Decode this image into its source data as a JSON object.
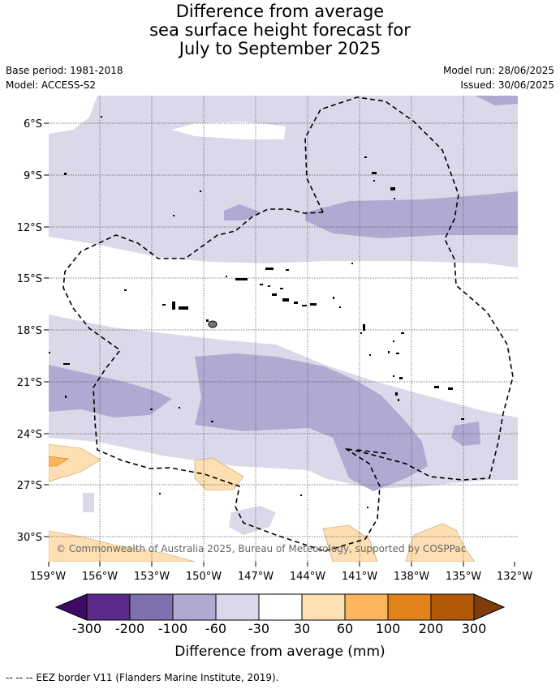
{
  "title": {
    "line1": "Difference from average",
    "line2": "sea surface height forecast for",
    "line3": "July to September 2025"
  },
  "meta": {
    "base_period": "Base period: 1981-2018",
    "model": "Model: ACCESS-S2",
    "model_run": "Model run: 28/06/2025",
    "issued": "Issued: 30/06/2025"
  },
  "map": {
    "copyright": "© Commonwealth of Australia 2025, Bureau of Meteorology, supported by COSPPac",
    "lat_labels": [
      "6°S",
      "9°S",
      "12°S",
      "15°S",
      "18°S",
      "21°S",
      "24°S",
      "27°S",
      "30°S"
    ],
    "lon_labels": [
      "159°W",
      "156°W",
      "153°W",
      "150°W",
      "147°W",
      "144°W",
      "141°W",
      "138°W",
      "135°W",
      "132°W"
    ],
    "colors": {
      "ocean_neutral": "#ffffff",
      "neg_30_60": "#d9d9ea",
      "neg_60_100": "#b1a9d2",
      "pos_30_60": "#fddfb3",
      "pos_60_100": "#fbb55e",
      "land": "#000000"
    }
  },
  "colorbar": {
    "label": "Difference from average (mm)",
    "ticks": [
      "-300",
      "-200",
      "-100",
      "-60",
      "-30",
      "30",
      "60",
      "100",
      "200",
      "300"
    ],
    "colors": [
      "#3f0a63",
      "#5b2a8a",
      "#8071ae",
      "#b1a9d2",
      "#d9d9ea",
      "#ffffff",
      "#fddfb3",
      "#fbb55e",
      "#e2821b",
      "#b35806",
      "#7f3b08"
    ]
  },
  "footnote": "-- -- -- EEZ border V11 (Flanders Marine Institute, 2019)."
}
